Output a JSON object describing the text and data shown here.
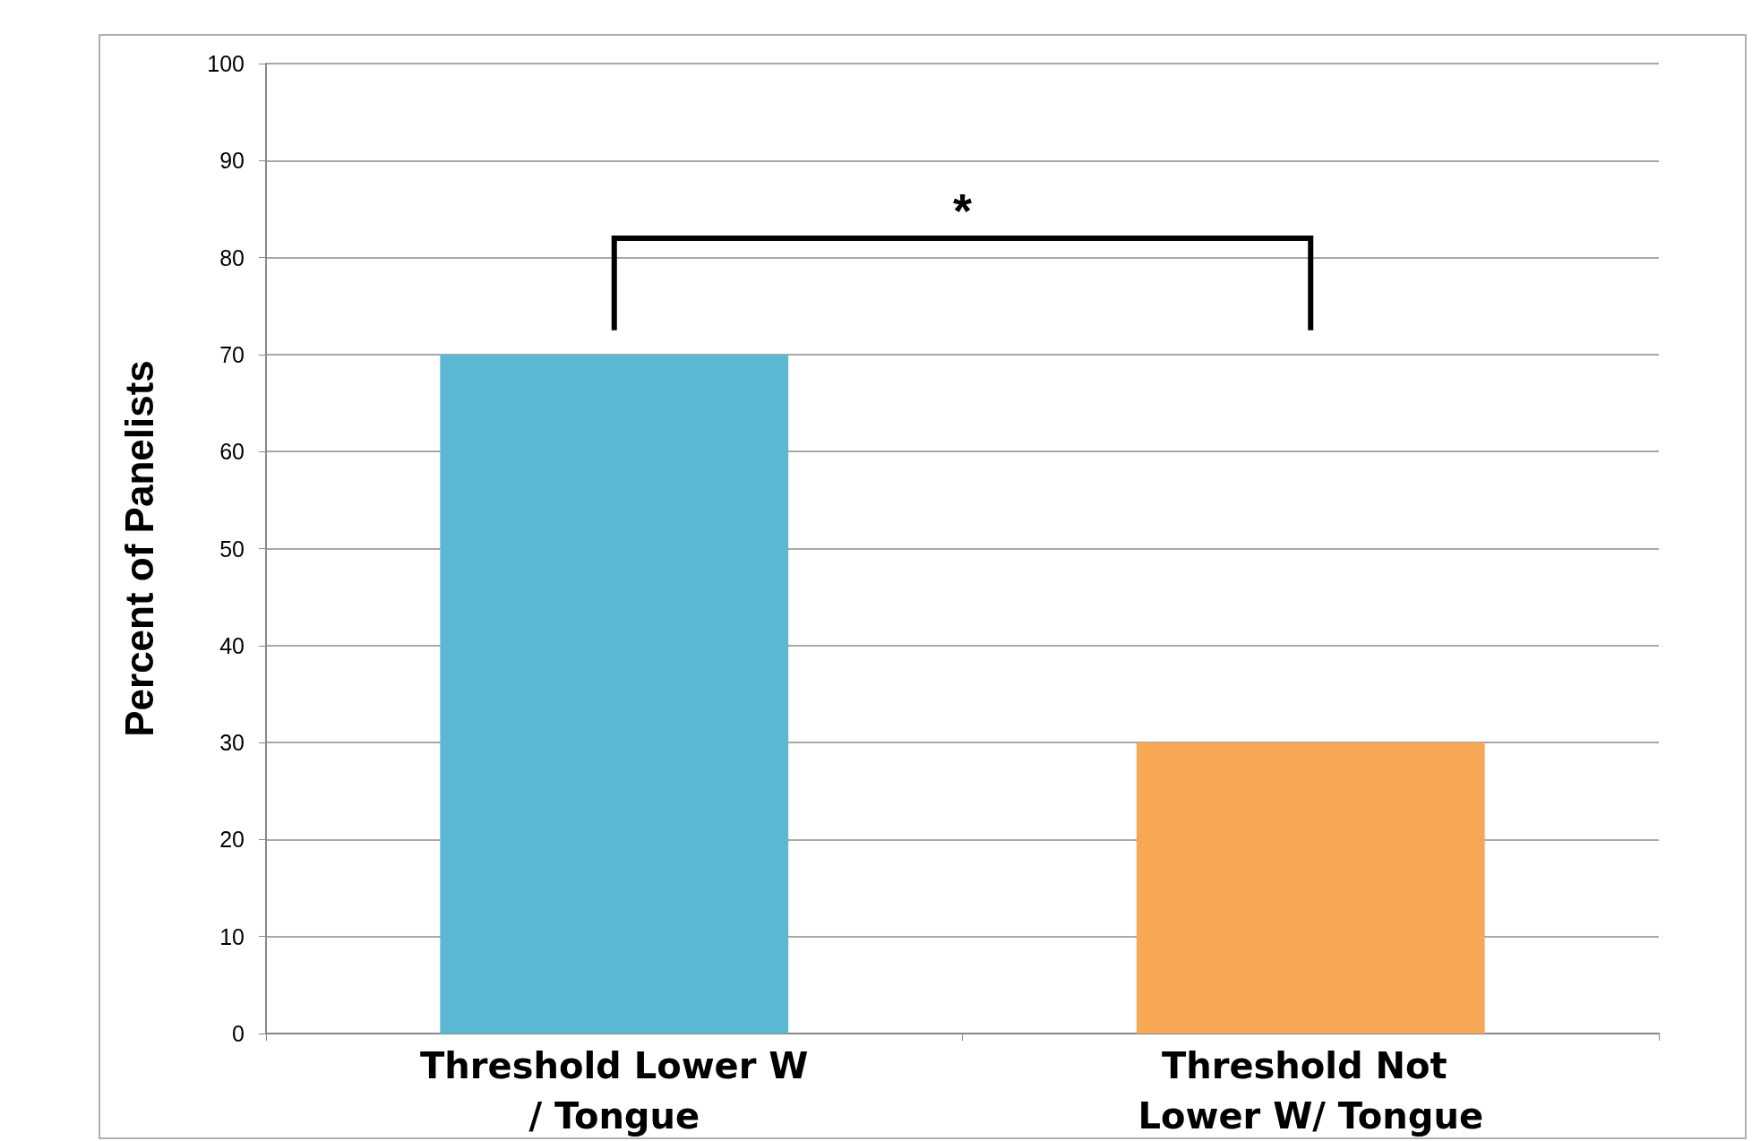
{
  "chart_data": {
    "type": "bar",
    "ylabel": "Percent of Panelists",
    "categories": [
      "Threshold Lower W/ Tongue",
      "Threshold Not Lower W/ Tongue"
    ],
    "values": [
      70,
      30
    ],
    "colors": [
      "#5bb8d2",
      "#f8a755"
    ],
    "ylim": [
      0,
      100
    ],
    "yticks": [
      0,
      10,
      20,
      30,
      40,
      50,
      60,
      70,
      80,
      90,
      100
    ],
    "grid": "y",
    "annotations": [
      "*"
    ]
  }
}
